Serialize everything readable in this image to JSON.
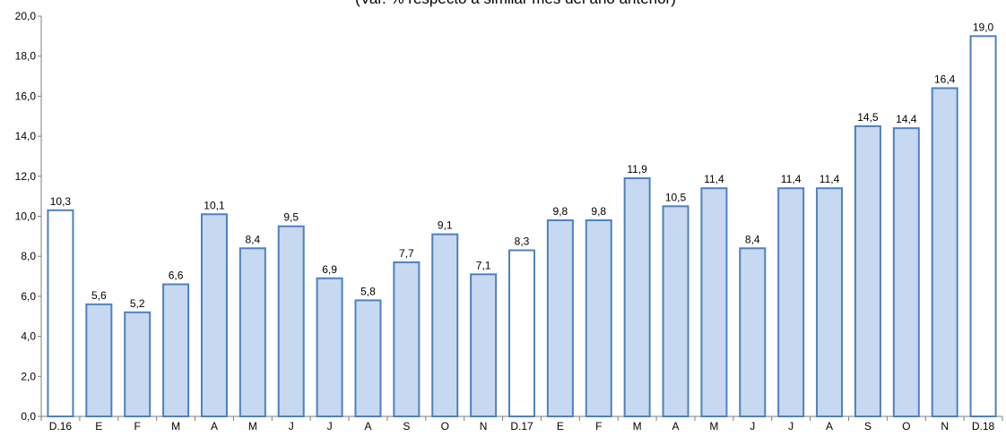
{
  "subtitle": "(Var. % respecto a similar mes del año anterior)",
  "colors": {
    "bar_fill": "#c6d9f1",
    "bar_stroke": "#4f81bd",
    "highlight_fill": "#ffffff",
    "axis": "#7f7f7f"
  },
  "chart_data": {
    "type": "bar",
    "categories": [
      "D.16",
      "E",
      "F",
      "M",
      "A",
      "M",
      "J",
      "J",
      "A",
      "S",
      "O",
      "N",
      "D.17",
      "E",
      "F",
      "M",
      "A",
      "M",
      "J",
      "J",
      "A",
      "S",
      "O",
      "N",
      "D.18"
    ],
    "values": [
      10.3,
      5.6,
      5.2,
      6.6,
      10.1,
      8.4,
      9.5,
      6.9,
      5.8,
      7.7,
      9.1,
      7.1,
      8.3,
      9.8,
      9.8,
      11.9,
      10.5,
      11.4,
      8.4,
      11.4,
      11.4,
      14.5,
      14.4,
      16.4,
      19.0
    ],
    "data_labels": [
      "10,3",
      "5,6",
      "5,2",
      "6,6",
      "10,1",
      "8,4",
      "9,5",
      "6,9",
      "5,8",
      "7,7",
      "9,1",
      "7,1",
      "8,3",
      "9,8",
      "9,8",
      "11,9",
      "10,5",
      "11,4",
      "8,4",
      "11,4",
      "11,4",
      "14,5",
      "14,4",
      "16,4",
      "19,0"
    ],
    "highlighted_categories": [
      "D.16",
      "D.17",
      "D.18"
    ],
    "ylim": [
      0,
      20
    ],
    "yticks": [
      0,
      2,
      4,
      6,
      8,
      10,
      12,
      14,
      16,
      18,
      20
    ],
    "ytick_labels": [
      "0,0",
      "2,0",
      "4,0",
      "6,0",
      "8,0",
      "10,0",
      "12,0",
      "14,0",
      "16,0",
      "18,0",
      "20,0"
    ],
    "grid": false,
    "xlabel": "",
    "ylabel": ""
  }
}
